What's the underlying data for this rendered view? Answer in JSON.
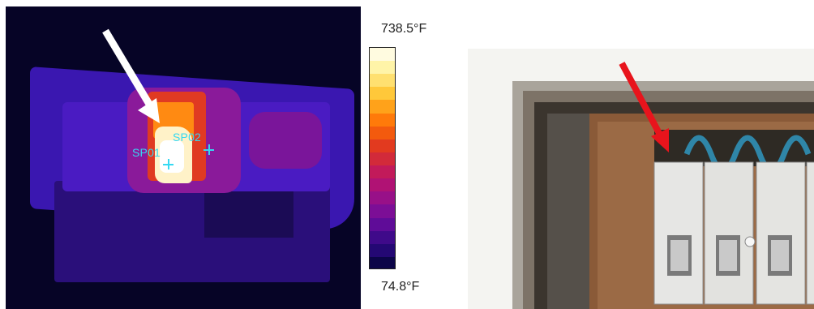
{
  "thermal_image": {
    "spot_labels": [
      "SP01",
      "SP02"
    ],
    "scale_max": "738.5°F",
    "scale_min": "74.8°F",
    "arrow_color": "#ffffff"
  },
  "palette_colors": [
    "#fffbe0",
    "#fff4a8",
    "#ffe070",
    "#ffc83a",
    "#ffa21a",
    "#ff7a0a",
    "#f35a0e",
    "#e23a1f",
    "#d22a3a",
    "#c21a5a",
    "#b01274",
    "#981088",
    "#7c0e96",
    "#5f0c98",
    "#3f0a8a",
    "#240874",
    "#0c0548"
  ],
  "photo": {
    "arrow_color": "#e8141c"
  }
}
